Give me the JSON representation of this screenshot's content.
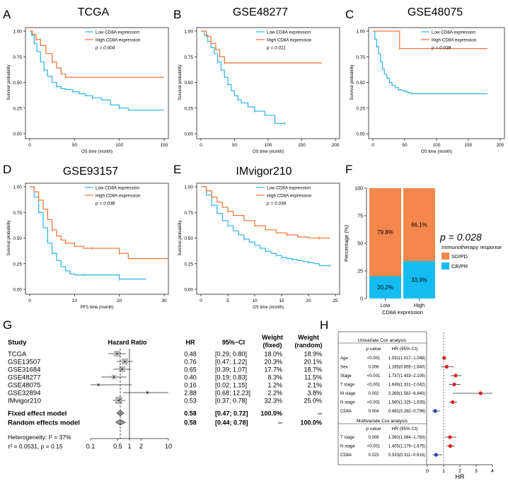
{
  "colors": {
    "low": "#39b8ee",
    "high": "#f07a3f",
    "srd": "#f4874b",
    "crpr": "#15bcf2",
    "red_dot": "#e41a1c",
    "blue_dot": "#1f3fc2",
    "diamond": "#9a9a9a",
    "grey_box": "#b5b5b5"
  },
  "chart_data": [
    {
      "type": "line",
      "panel": "A",
      "title": "TCGA",
      "xlabel": "OS time (month)",
      "ylabel": "Survival probability",
      "xlim": [
        0,
        150
      ],
      "ylim": [
        0,
        1
      ],
      "xticks": [
        0,
        50,
        100,
        150
      ],
      "yticks": [
        "0.00",
        "0.25",
        "0.50",
        "0.75",
        "1.00"
      ],
      "legend": [
        "Low CD8A expression",
        "High CD8A expression"
      ],
      "pvalue": "p = 0.004",
      "series": [
        {
          "name": "Low CD8A expression",
          "x": [
            0,
            2,
            5,
            8,
            12,
            16,
            20,
            25,
            30,
            35,
            40,
            48,
            55,
            62,
            70,
            80,
            90,
            100,
            110,
            150
          ],
          "y": [
            1.0,
            0.96,
            0.88,
            0.8,
            0.7,
            0.62,
            0.56,
            0.5,
            0.46,
            0.44,
            0.43,
            0.41,
            0.39,
            0.37,
            0.35,
            0.33,
            0.28,
            0.25,
            0.23,
            0.23
          ]
        },
        {
          "name": "High CD8A expression",
          "x": [
            0,
            3,
            7,
            12,
            18,
            25,
            30,
            35,
            40,
            150
          ],
          "y": [
            1.0,
            0.97,
            0.92,
            0.86,
            0.78,
            0.7,
            0.64,
            0.58,
            0.55,
            0.55
          ]
        }
      ]
    },
    {
      "type": "line",
      "panel": "B",
      "title": "GSE48277",
      "xlabel": "OS time (month)",
      "ylabel": "Survival probability",
      "xlim": [
        0,
        200
      ],
      "ylim": [
        0,
        1
      ],
      "xticks": [
        0,
        50,
        100,
        150,
        200
      ],
      "yticks": [
        "0.00",
        "0.25",
        "0.50",
        "0.75",
        "1.00"
      ],
      "legend": [
        "Low CD8A expression",
        "High CD8A expression"
      ],
      "pvalue": "p = 0.011",
      "series": [
        {
          "name": "Low CD8A expression",
          "x": [
            0,
            5,
            10,
            15,
            20,
            25,
            30,
            35,
            40,
            45,
            50,
            55,
            60,
            70,
            80,
            95,
            110,
            125
          ],
          "y": [
            1.0,
            0.96,
            0.9,
            0.84,
            0.78,
            0.7,
            0.62,
            0.55,
            0.48,
            0.42,
            0.37,
            0.33,
            0.3,
            0.26,
            0.22,
            0.18,
            0.1,
            0.1
          ]
        },
        {
          "name": "High CD8A expression",
          "x": [
            0,
            8,
            15,
            22,
            28,
            35,
            180
          ],
          "y": [
            1.0,
            0.95,
            0.88,
            0.82,
            0.75,
            0.69,
            0.69
          ]
        }
      ]
    },
    {
      "type": "line",
      "panel": "C",
      "title": "GSE48075",
      "xlabel": "OS time (month)",
      "ylabel": "Survival probability",
      "xlim": [
        0,
        200
      ],
      "ylim": [
        0,
        1
      ],
      "xticks": [
        0,
        50,
        100,
        150,
        200
      ],
      "yticks": [
        "0.00",
        "0.25",
        "0.50",
        "0.75",
        "1.00"
      ],
      "legend": [
        "Low CD8A expression",
        "High CD8A expression"
      ],
      "pvalue": "p = 0.038",
      "series": [
        {
          "name": "Low CD8A expression",
          "x": [
            0,
            3,
            6,
            9,
            12,
            15,
            18,
            22,
            26,
            30,
            35,
            40,
            45,
            50,
            55,
            60,
            180
          ],
          "y": [
            1.0,
            0.92,
            0.85,
            0.78,
            0.7,
            0.63,
            0.58,
            0.54,
            0.5,
            0.47,
            0.45,
            0.43,
            0.42,
            0.41,
            0.4,
            0.39,
            0.39
          ]
        },
        {
          "name": "High CD8A expression",
          "x": [
            0,
            42,
            42,
            180
          ],
          "y": [
            1.0,
            1.0,
            0.83,
            0.83
          ]
        }
      ]
    },
    {
      "type": "line",
      "panel": "D",
      "title": "GSE93157",
      "xlabel": "PFS time (month)",
      "ylabel": "Survival probability",
      "xlim": [
        0,
        30
      ],
      "ylim": [
        0,
        1
      ],
      "xticks": [
        0,
        10,
        20,
        30
      ],
      "yticks": [
        "0.00",
        "0.25",
        "0.50",
        "0.75",
        "1.00"
      ],
      "legend": [
        "Low CD8A expression",
        "High CD8A expression"
      ],
      "pvalue": "p = 0.038",
      "series": [
        {
          "name": "Low CD8A expression",
          "x": [
            0,
            1,
            2,
            3,
            4,
            5,
            6,
            7,
            8,
            9,
            10,
            12,
            14,
            16,
            20,
            26
          ],
          "y": [
            1.0,
            0.9,
            0.75,
            0.6,
            0.45,
            0.35,
            0.28,
            0.22,
            0.18,
            0.15,
            0.14,
            0.14,
            0.14,
            0.14,
            0.1,
            0.1
          ]
        },
        {
          "name": "High CD8A expression",
          "x": [
            0,
            1,
            2,
            3,
            4,
            5,
            6,
            7,
            8,
            10,
            12,
            14,
            16,
            18,
            20,
            22,
            31
          ],
          "y": [
            1.0,
            0.95,
            0.87,
            0.78,
            0.68,
            0.58,
            0.52,
            0.48,
            0.45,
            0.42,
            0.4,
            0.4,
            0.4,
            0.4,
            0.35,
            0.3,
            0.3
          ]
        }
      ]
    },
    {
      "type": "line",
      "panel": "E",
      "title": "IMvigor210",
      "xlabel": "OS time (month)",
      "ylabel": "Survival probability",
      "xlim": [
        0,
        25
      ],
      "ylim": [
        0,
        1
      ],
      "xticks": [
        0,
        5,
        10,
        15,
        20,
        25
      ],
      "yticks": [
        "0.00",
        "0.25",
        "0.50",
        "0.75",
        "1.00"
      ],
      "legend": [
        "Low CD8A expression",
        "High CD8A expression"
      ],
      "pvalue": "p = 0.038",
      "series": [
        {
          "name": "Low CD8A expression",
          "x": [
            0,
            1,
            2,
            3,
            4,
            5,
            6,
            7,
            8,
            9,
            10,
            11,
            12,
            13,
            14,
            15,
            16,
            17,
            18,
            19,
            20,
            21,
            22,
            24
          ],
          "y": [
            1.0,
            0.92,
            0.82,
            0.74,
            0.67,
            0.62,
            0.57,
            0.53,
            0.49,
            0.46,
            0.43,
            0.4,
            0.37,
            0.35,
            0.33,
            0.31,
            0.3,
            0.29,
            0.28,
            0.27,
            0.26,
            0.25,
            0.23,
            0.23
          ]
        },
        {
          "name": "High CD8A expression",
          "x": [
            0,
            1,
            2,
            3,
            4,
            5,
            6,
            8,
            10,
            12,
            14,
            16,
            18,
            20,
            22,
            24
          ],
          "y": [
            1.0,
            0.96,
            0.9,
            0.85,
            0.8,
            0.76,
            0.72,
            0.67,
            0.62,
            0.58,
            0.55,
            0.53,
            0.51,
            0.5,
            0.5,
            0.5
          ]
        }
      ]
    },
    {
      "type": "bar",
      "panel": "F",
      "stacked": true,
      "categories": [
        "Low",
        "High"
      ],
      "xlabel": "CD8A expression",
      "ylabel": "Percentage (%)",
      "ylim": [
        0,
        100
      ],
      "yticks": [
        0,
        25,
        50,
        75,
        100
      ],
      "series": [
        {
          "name": "CR/PR",
          "values": [
            20.2,
            33.9
          ],
          "labels": [
            "20.2%",
            "33.9%"
          ]
        },
        {
          "name": "SD/PD",
          "values": [
            79.8,
            66.1
          ],
          "labels": [
            "79.8%",
            "66.1%"
          ]
        }
      ],
      "pvalue": "p = 0.028",
      "legend_title": "Immunotherapy response",
      "legend": [
        "SD/PD",
        "CR/PR"
      ]
    },
    {
      "type": "forest",
      "panel": "G",
      "headers": {
        "study": "Study",
        "hr_title": "Hazard Ratio",
        "hr": "HR",
        "ci": "95%−CI",
        "wf1": "Weight",
        "wf2": "(fixed)",
        "wr1": "Weight",
        "wr2": "(random)"
      },
      "studies": [
        {
          "study": "TCGA",
          "hr": 0.48,
          "lo": 0.29,
          "hi": 0.8,
          "hr_text": "0.48",
          "ci_text": "[0.29;  0.80]",
          "wf": "18.0%",
          "wr": "18.9%"
        },
        {
          "study": "GSE13507",
          "hr": 0.76,
          "lo": 0.47,
          "hi": 1.22,
          "hr_text": "0.76",
          "ci_text": "[0.47;  1.22]",
          "wf": "20.3%",
          "wr": "20.1%"
        },
        {
          "study": "GSE31684",
          "hr": 0.65,
          "lo": 0.39,
          "hi": 1.07,
          "hr_text": "0.65",
          "ci_text": "[0.39;  1.07]",
          "wf": "17.7%",
          "wr": "18.7%"
        },
        {
          "study": "GSE48277",
          "hr": 0.4,
          "lo": 0.19,
          "hi": 0.83,
          "hr_text": "0.40",
          "ci_text": "[0.19;  0.83]",
          "wf": "8.3%",
          "wr": "11.5%"
        },
        {
          "study": "GSE48075",
          "hr": 0.16,
          "lo": 0.02,
          "hi": 1.15,
          "hr_text": "0.16",
          "ci_text": "[0.02;  1.15]",
          "wf": "1.2%",
          "wr": "2.1%"
        },
        {
          "study": "GSE32894",
          "hr": 2.88,
          "lo": 0.68,
          "hi": 12.23,
          "hr_text": "2.88",
          "ci_text": "[0.68; 12.23]",
          "wf": "2.2%",
          "wr": "3.8%"
        },
        {
          "study": "IMvigor210",
          "hr": 0.53,
          "lo": 0.37,
          "hi": 0.78,
          "hr_text": "0.53",
          "ci_text": "[0.37;  0.78]",
          "wf": "32.3%",
          "wr": "25.0%"
        }
      ],
      "fixed": {
        "label": "Fixed effect model",
        "hr": 0.58,
        "lo": 0.47,
        "hi": 0.72,
        "hr_text": "0.58",
        "ci_text": "[0.47;  0.72]",
        "wf": "100.0%",
        "wr": "--"
      },
      "random": {
        "label": "Random effects model",
        "hr": 0.58,
        "lo": 0.44,
        "hi": 0.78,
        "hr_text": "0.58",
        "ci_text": "[0.44;  0.78]",
        "wf": "--",
        "wr": "100.0%"
      },
      "heterogeneity": "Heterogeneity: I² = 37%",
      "tau": "τ² = 0.0531, p = 0.15",
      "axis_ticks": [
        "0.1",
        "0.5",
        "1",
        "2",
        "10"
      ],
      "axis_values": [
        0.1,
        0.5,
        1,
        2,
        10
      ],
      "reference_line": 0.58
    },
    {
      "type": "forest",
      "panel": "H",
      "xlabel": "HR",
      "xlim": [
        0,
        4
      ],
      "xticks": [
        0,
        1,
        2,
        3,
        4
      ],
      "univariate": {
        "title": "Univariate Cox analysis",
        "col_p": "p value",
        "col_hr": "HR (95% CI)",
        "rows": [
          {
            "name": "Age",
            "p": "<0.001",
            "hr_text": "1.032(1.017−1.048)",
            "hr": 1.032,
            "lo": 1.017,
            "hi": 1.048
          },
          {
            "name": "Sex",
            "p": "0.308",
            "hr_text": "1.185(0.855−1.640)",
            "hr": 1.185,
            "lo": 0.855,
            "hi": 1.64
          },
          {
            "name": "Stage",
            "p": "<0.001",
            "hr_text": "1.737(1.433−2.105)",
            "hr": 1.737,
            "lo": 1.433,
            "hi": 2.105
          },
          {
            "name": "T stage",
            "p": "<0.001",
            "hr_text": "1.649(1.331−2.042)",
            "hr": 1.649,
            "lo": 1.331,
            "hi": 2.042
          },
          {
            "name": "M stage",
            "p": "0.002",
            "hr_text": "3.269(1.562−6.840)",
            "hr": 3.269,
            "lo": 1.562,
            "hi": 6.84
          },
          {
            "name": "N stage",
            "p": "<0.001",
            "hr_text": "1.560(1.325−1.835)",
            "hr": 1.56,
            "lo": 1.325,
            "hi": 1.835
          },
          {
            "name": "CD8A",
            "p": "0.004",
            "hr_text": "0.482(0.292−0.796)",
            "hr": 0.482,
            "lo": 0.292,
            "hi": 0.796
          }
        ]
      },
      "multivariate": {
        "title": "Multivariate Cox analysis",
        "col_p": "p value",
        "col_hr": "HR (95% CI)",
        "rows": [
          {
            "name": "T stage",
            "p": "0.009",
            "hr_text": "1.390(1.084−1.783)",
            "hr": 1.39,
            "lo": 1.084,
            "hi": 1.783
          },
          {
            "name": "N stage",
            "p": "<0.001",
            "hr_text": "1.405(1.179−1.675)",
            "hr": 1.405,
            "lo": 1.179,
            "hi": 1.675
          },
          {
            "name": "CD8A",
            "p": "0.023",
            "hr_text": "0.533(0.311−0.916)",
            "hr": 0.533,
            "lo": 0.311,
            "hi": 0.916
          }
        ]
      }
    }
  ]
}
